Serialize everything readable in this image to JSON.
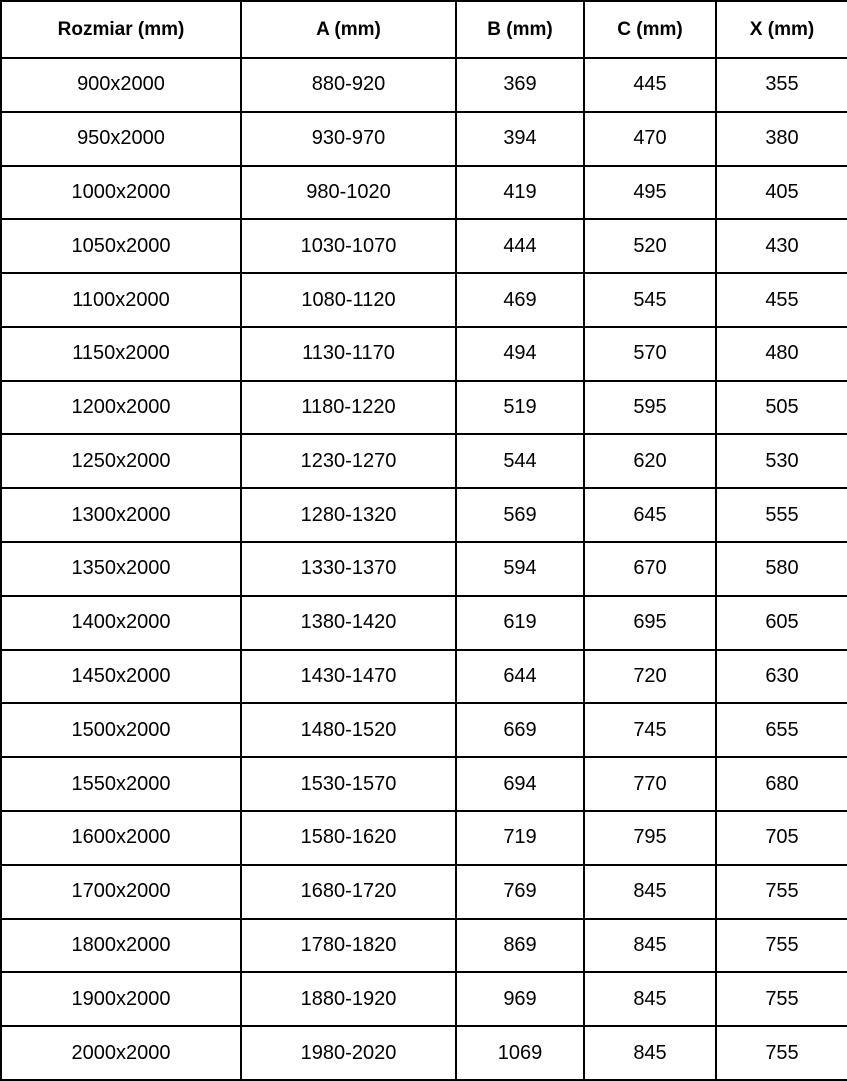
{
  "colors": {
    "background": "#ffffff",
    "border": "#000000",
    "text": "#000000"
  },
  "table": {
    "headers": [
      "Rozmiar (mm)",
      "A (mm)",
      "B (mm)",
      "C (mm)",
      "X (mm)"
    ],
    "rows": [
      [
        "900x2000",
        "880-920",
        "369",
        "445",
        "355"
      ],
      [
        "950x2000",
        "930-970",
        "394",
        "470",
        "380"
      ],
      [
        "1000x2000",
        "980-1020",
        "419",
        "495",
        "405"
      ],
      [
        "1050x2000",
        "1030-1070",
        "444",
        "520",
        "430"
      ],
      [
        "1100x2000",
        "1080-1120",
        "469",
        "545",
        "455"
      ],
      [
        "1150x2000",
        "1130-1170",
        "494",
        "570",
        "480"
      ],
      [
        "1200x2000",
        "1180-1220",
        "519",
        "595",
        "505"
      ],
      [
        "1250x2000",
        "1230-1270",
        "544",
        "620",
        "530"
      ],
      [
        "1300x2000",
        "1280-1320",
        "569",
        "645",
        "555"
      ],
      [
        "1350x2000",
        "1330-1370",
        "594",
        "670",
        "580"
      ],
      [
        "1400x2000",
        "1380-1420",
        "619",
        "695",
        "605"
      ],
      [
        "1450x2000",
        "1430-1470",
        "644",
        "720",
        "630"
      ],
      [
        "1500x2000",
        "1480-1520",
        "669",
        "745",
        "655"
      ],
      [
        "1550x2000",
        "1530-1570",
        "694",
        "770",
        "680"
      ],
      [
        "1600x2000",
        "1580-1620",
        "719",
        "795",
        "705"
      ],
      [
        "1700x2000",
        "1680-1720",
        "769",
        "845",
        "755"
      ],
      [
        "1800x2000",
        "1780-1820",
        "869",
        "845",
        "755"
      ],
      [
        "1900x2000",
        "1880-1920",
        "969",
        "845",
        "755"
      ],
      [
        "2000x2000",
        "1980-2020",
        "1069",
        "845",
        "755"
      ]
    ]
  }
}
